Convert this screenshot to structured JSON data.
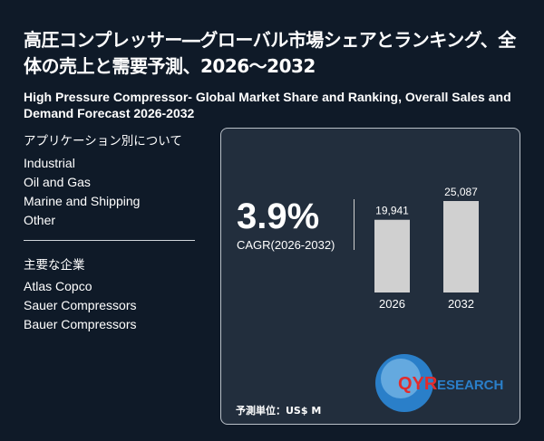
{
  "title_ja": "高圧コンプレッサー―グローバル市場シェアとランキング、全体の売上と需要予測、2026～2032",
  "title_en": "High Pressure Compressor- Global Market Share and Ranking, Overall Sales and Demand Forecast 2026-2032",
  "applications": {
    "heading": "アプリケーション別について",
    "items": [
      "Industrial",
      "Oil and Gas",
      "Marine and Shipping",
      "Other"
    ]
  },
  "companies": {
    "heading": "主要な企業",
    "items": [
      "Atlas Copco",
      "Sauer Compressors",
      "Bauer Compressors"
    ]
  },
  "cagr": {
    "value": "3.9%",
    "label": "CAGR(2026-2032)"
  },
  "unit_label": "予測単位：US$ M",
  "logo_text": "QYRESEARCH",
  "chart_data": {
    "type": "bar",
    "categories": [
      "2026",
      "2032"
    ],
    "values": [
      19941,
      25087
    ],
    "data_labels": [
      "19,941",
      "25,087"
    ],
    "bar_color": "#d0d0d0",
    "grid": false
  }
}
